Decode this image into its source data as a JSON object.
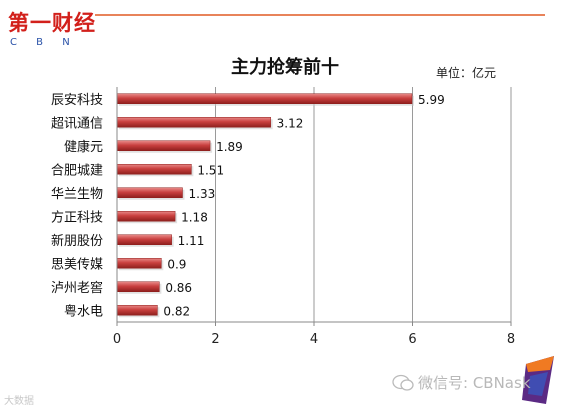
{
  "logo": {
    "chinese": "第一财经",
    "latin": "C B N"
  },
  "watermark": {
    "wechat": "微信号: CBNask",
    "bottom_left": "大数据"
  },
  "colors": {
    "bar_fill": "#c9403f",
    "bar_dark": "#8e1f1d",
    "bar_light": "#e88a88",
    "logo_red": "#d2201b",
    "logo_blue": "#2a52a8",
    "header_line": "#e05a23",
    "corner_orange": "#f07a22",
    "corner_purple": "#5b2a84"
  },
  "chart_data": {
    "type": "bar",
    "orientation": "horizontal",
    "title": "主力抢筹前十",
    "unit_label": "单位：亿元",
    "categories": [
      "辰安科技",
      "超讯通信",
      "健康元",
      "合肥城建",
      "华兰生物",
      "方正科技",
      "新朋股份",
      "思美传媒",
      "泸州老窖",
      "粤水电"
    ],
    "values": [
      5.99,
      3.12,
      1.89,
      1.51,
      1.33,
      1.18,
      1.11,
      0.9,
      0.86,
      0.82
    ],
    "value_labels": [
      "5.99",
      "3.12",
      "1.89",
      "1.51",
      "1.33",
      "1.18",
      "1.11",
      "0.9",
      "0.86",
      "0.82"
    ],
    "xlim": [
      0,
      8
    ],
    "xticks": [
      "0",
      "2",
      "4",
      "6",
      "8"
    ],
    "grid": true,
    "legend": "none"
  }
}
